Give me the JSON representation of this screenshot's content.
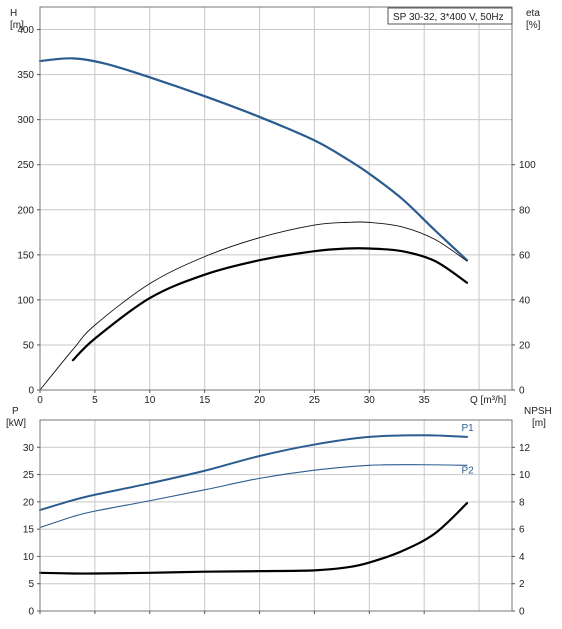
{
  "chart_data": [
    {
      "type": "line",
      "title": "SP 30-32, 3*400 V, 50Hz",
      "xlabel": "Q [m³/h]",
      "xlim": [
        0,
        43
      ],
      "xticks": [
        0,
        5,
        10,
        15,
        20,
        25,
        30,
        35
      ],
      "grid": true,
      "y_left": {
        "label_line1": "H",
        "label_line2": "[m]",
        "lim": [
          0,
          425
        ],
        "ticks": [
          0,
          50,
          100,
          150,
          200,
          250,
          300,
          350,
          400
        ]
      },
      "y_right": {
        "label_line1": "eta",
        "label_line2": "[%]",
        "lim": [
          0,
          170
        ],
        "ticks": [
          0,
          20,
          40,
          60,
          80,
          100
        ]
      },
      "series": [
        {
          "name": "",
          "axis": "left",
          "color": "#2b5c8f",
          "width": 2.2,
          "x": [
            0,
            3,
            6,
            10,
            15,
            20,
            25,
            28,
            30,
            33,
            36,
            38.9
          ],
          "y": [
            365,
            368,
            362,
            347,
            326,
            303,
            277,
            256,
            240,
            212,
            177,
            144
          ]
        },
        {
          "name": "",
          "axis": "left",
          "color": "#111111",
          "width": 0.9,
          "x": [
            0,
            3,
            5,
            10,
            15,
            20,
            25,
            28,
            30,
            33,
            36,
            38.9
          ],
          "y": [
            0,
            45,
            72,
            118,
            148,
            169,
            183,
            186,
            186,
            181,
            167,
            143
          ]
        },
        {
          "name": "",
          "axis": "left",
          "color": "#000000",
          "width": 2.2,
          "x": [
            3,
            5,
            10,
            15,
            20,
            25,
            28,
            30,
            33,
            36,
            38.9
          ],
          "y": [
            33,
            57,
            102,
            128,
            144,
            154,
            157,
            157,
            154,
            143,
            119
          ]
        }
      ]
    },
    {
      "type": "line",
      "xlim": [
        0,
        43
      ],
      "grid": true,
      "y_left": {
        "label_line1": "P",
        "label_line2": "[kW]",
        "lim": [
          0,
          35
        ],
        "ticks": [
          0,
          5,
          10,
          15,
          20,
          25,
          30
        ]
      },
      "y_right": {
        "label_line1": "NPSH",
        "label_line2": "[m]",
        "lim": [
          0,
          14
        ],
        "ticks": [
          0,
          2,
          4,
          6,
          8,
          10,
          12
        ]
      },
      "series": [
        {
          "name": "P1",
          "axis": "left",
          "color": "#2b5c8f",
          "width": 2.0,
          "label_at": [
            38.4,
            33.0
          ],
          "x": [
            0,
            3,
            5,
            10,
            15,
            20,
            25,
            30,
            35,
            38.9
          ],
          "y": [
            18.5,
            20.3,
            21.3,
            23.4,
            25.7,
            28.4,
            30.5,
            31.9,
            32.2,
            31.9
          ]
        },
        {
          "name": "P2",
          "axis": "left",
          "color": "#2b5c8f",
          "width": 1.1,
          "label_at": [
            38.4,
            25.2
          ],
          "x": [
            0,
            3,
            5,
            10,
            15,
            20,
            25,
            30,
            35,
            38.9
          ],
          "y": [
            15.3,
            17.3,
            18.3,
            20.2,
            22.2,
            24.3,
            25.8,
            26.7,
            26.8,
            26.7
          ]
        },
        {
          "name": "",
          "axis": "right",
          "color": "#000000",
          "width": 2.2,
          "x": [
            0,
            3,
            5,
            10,
            15,
            20,
            25,
            28,
            30,
            33,
            36,
            38.9
          ],
          "y": [
            2.8,
            2.75,
            2.75,
            2.8,
            2.88,
            2.92,
            2.98,
            3.2,
            3.55,
            4.4,
            5.7,
            7.9
          ]
        }
      ]
    }
  ]
}
